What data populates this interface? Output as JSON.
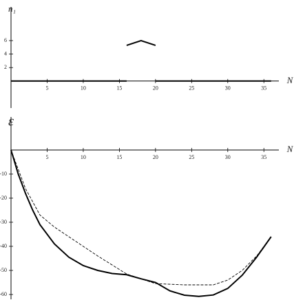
{
  "chart_data": [
    {
      "type": "line",
      "y_label": "n₁",
      "x_label": "N",
      "xlim": [
        0,
        36.5
      ],
      "ylim": [
        -4,
        11
      ],
      "xticks": [
        5,
        10,
        15,
        20,
        25,
        30,
        35
      ],
      "yticks": [
        2,
        4,
        6
      ],
      "series": [
        {
          "name": "n1",
          "color": "#000",
          "dash": false,
          "x": [
            0,
            16,
            16,
            16,
            18,
            20,
            20,
            20,
            36
          ],
          "values": [
            0,
            0,
            null,
            5.3,
            6,
            5.3,
            null,
            0,
            0
          ]
        }
      ]
    },
    {
      "type": "line",
      "y_label": "ε",
      "x_label": "N",
      "xlim": [
        0,
        36.5
      ],
      "ylim": [
        -62,
        13.7
      ],
      "xticks": [
        5,
        10,
        15,
        20,
        25,
        30,
        35
      ],
      "yticks": [
        -10,
        -20,
        -30,
        -40,
        -50,
        -60
      ],
      "series": [
        {
          "name": "solid",
          "color": "#000",
          "dash": false,
          "x": [
            0,
            1,
            2,
            3,
            4,
            6,
            8,
            10,
            12,
            14,
            16,
            18,
            20,
            22,
            24,
            26,
            28,
            30,
            32,
            34,
            36
          ],
          "values": [
            0,
            -10,
            -18,
            -25,
            -31,
            -39,
            -44.5,
            -48,
            -50,
            -51.3,
            -51.8,
            -53.5,
            -55,
            -58.5,
            -60.3,
            -60.8,
            -60.2,
            -57.5,
            -52,
            -44.5,
            -36
          ]
        },
        {
          "name": "dashed",
          "color": "#000",
          "dash": true,
          "x": [
            0,
            2,
            4,
            6,
            8,
            12,
            16,
            20,
            24,
            28,
            30,
            32,
            34,
            36
          ],
          "values": [
            0,
            -16,
            -27,
            -32,
            -36,
            -44,
            -51.5,
            -55.5,
            -56,
            -56,
            -54,
            -50,
            -44,
            -36
          ]
        }
      ]
    }
  ]
}
